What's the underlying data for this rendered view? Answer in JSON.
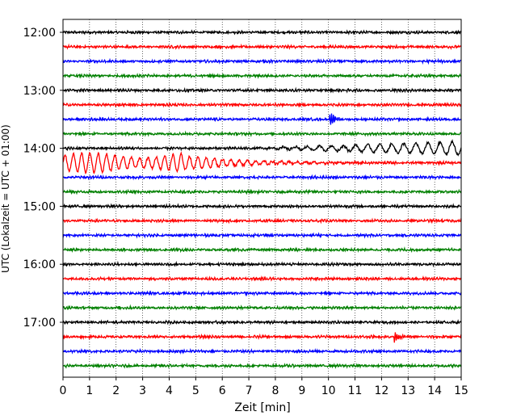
{
  "chart_data": {
    "type": "line",
    "title": "",
    "xlabel": "Zeit  [min]",
    "ylabel": "UTC (Lokalzeit = UTC + 01:00)",
    "xlim": [
      0,
      15
    ],
    "x_ticks": [
      "0",
      "1",
      "2",
      "3",
      "4",
      "5",
      "6",
      "7",
      "8",
      "9",
      "10",
      "11",
      "12",
      "13",
      "14",
      "15"
    ],
    "y_tick_labels": [
      "12:00",
      "13:00",
      "14:00",
      "15:00",
      "16:00",
      "17:00"
    ],
    "grid": "vertical dotted lines at each minute",
    "trace_interval_minutes": 15,
    "trace_start": "12:00",
    "trace_count": 24,
    "colors": [
      "#000000",
      "#ff0000",
      "#0000ff",
      "#008000"
    ],
    "events": [
      {
        "trace": "13:30",
        "time_min": 10.1,
        "description": "blue spike"
      },
      {
        "trace": "14:00",
        "time_min_start": 7.0,
        "time_min_end": 15.0,
        "description": "growing long-period oscillation"
      },
      {
        "trace": "14:15",
        "time_min_start": 0.0,
        "time_min_end": 5.0,
        "description": "large red oscillation decaying toward 9 min"
      },
      {
        "trace": "17:15",
        "time_min": 12.5,
        "description": "red burst"
      }
    ]
  }
}
